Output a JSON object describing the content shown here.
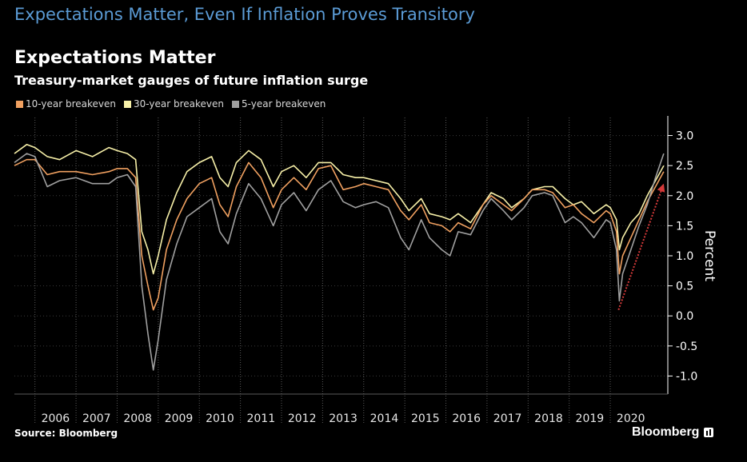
{
  "headline": "Expectations Matter, Even If Inflation Proves Transitory",
  "source": "Source: Bloomberg",
  "brand": "Bloomberg",
  "chart_data": {
    "type": "line",
    "title": "Expectations Matter",
    "subtitle": "Treasury-market gauges of future inflation surge",
    "xlabel": "",
    "ylabel": "Percent",
    "x_ticks": [
      "2006",
      "2007",
      "2008",
      "2009",
      "2010",
      "2011",
      "2012",
      "2013",
      "2014",
      "2015",
      "2016",
      "2017",
      "2018",
      "2019",
      "2020"
    ],
    "x_range": [
      2005.5,
      2021.4
    ],
    "ylim": [
      -1.3,
      3.3
    ],
    "y_ticks": [
      3.0,
      2.5,
      2.0,
      1.5,
      1.0,
      0.5,
      0.0,
      -0.5,
      -1.0
    ],
    "y_tick_labels": [
      "3.0",
      "2.5",
      "2.0",
      "1.5",
      "1.0",
      "0.5",
      "0.0",
      "-0.5",
      "-1.0"
    ],
    "annotation": {
      "type": "arrow",
      "color": "#d63a3a",
      "from": [
        2020.2,
        0.1
      ],
      "to": [
        2021.3,
        2.2
      ]
    },
    "series": [
      {
        "name": "30-year breakeven",
        "color": "#f7f0a8",
        "points": [
          [
            2005.5,
            2.7
          ],
          [
            2005.8,
            2.85
          ],
          [
            2006.0,
            2.8
          ],
          [
            2006.3,
            2.65
          ],
          [
            2006.6,
            2.6
          ],
          [
            2007.0,
            2.75
          ],
          [
            2007.4,
            2.65
          ],
          [
            2007.8,
            2.8
          ],
          [
            2008.0,
            2.75
          ],
          [
            2008.25,
            2.7
          ],
          [
            2008.45,
            2.6
          ],
          [
            2008.6,
            1.4
          ],
          [
            2008.75,
            1.1
          ],
          [
            2008.88,
            0.7
          ],
          [
            2009.0,
            1.0
          ],
          [
            2009.2,
            1.6
          ],
          [
            2009.45,
            2.05
          ],
          [
            2009.7,
            2.4
          ],
          [
            2010.0,
            2.55
          ],
          [
            2010.3,
            2.65
          ],
          [
            2010.5,
            2.3
          ],
          [
            2010.7,
            2.15
          ],
          [
            2010.9,
            2.55
          ],
          [
            2011.2,
            2.75
          ],
          [
            2011.5,
            2.6
          ],
          [
            2011.8,
            2.15
          ],
          [
            2012.0,
            2.4
          ],
          [
            2012.3,
            2.5
          ],
          [
            2012.6,
            2.3
          ],
          [
            2012.9,
            2.55
          ],
          [
            2013.2,
            2.55
          ],
          [
            2013.5,
            2.35
          ],
          [
            2013.8,
            2.3
          ],
          [
            2014.0,
            2.3
          ],
          [
            2014.3,
            2.25
          ],
          [
            2014.6,
            2.2
          ],
          [
            2014.9,
            1.95
          ],
          [
            2015.1,
            1.75
          ],
          [
            2015.4,
            1.95
          ],
          [
            2015.6,
            1.7
          ],
          [
            2015.9,
            1.65
          ],
          [
            2016.1,
            1.6
          ],
          [
            2016.3,
            1.7
          ],
          [
            2016.6,
            1.55
          ],
          [
            2016.9,
            1.85
          ],
          [
            2017.1,
            2.05
          ],
          [
            2017.4,
            1.95
          ],
          [
            2017.6,
            1.8
          ],
          [
            2017.9,
            1.95
          ],
          [
            2018.1,
            2.1
          ],
          [
            2018.4,
            2.15
          ],
          [
            2018.6,
            2.15
          ],
          [
            2018.9,
            1.95
          ],
          [
            2019.1,
            1.85
          ],
          [
            2019.3,
            1.9
          ],
          [
            2019.6,
            1.7
          ],
          [
            2019.9,
            1.85
          ],
          [
            2020.0,
            1.8
          ],
          [
            2020.15,
            1.6
          ],
          [
            2020.22,
            1.1
          ],
          [
            2020.3,
            1.3
          ],
          [
            2020.5,
            1.55
          ],
          [
            2020.7,
            1.7
          ],
          [
            2020.9,
            2.0
          ],
          [
            2021.1,
            2.25
          ],
          [
            2021.3,
            2.5
          ]
        ]
      },
      {
        "name": "10-year breakeven",
        "color": "#f0a060",
        "points": [
          [
            2005.5,
            2.5
          ],
          [
            2005.8,
            2.6
          ],
          [
            2006.0,
            2.6
          ],
          [
            2006.3,
            2.35
          ],
          [
            2006.6,
            2.4
          ],
          [
            2007.0,
            2.4
          ],
          [
            2007.4,
            2.35
          ],
          [
            2007.8,
            2.4
          ],
          [
            2008.0,
            2.45
          ],
          [
            2008.25,
            2.45
          ],
          [
            2008.45,
            2.3
          ],
          [
            2008.6,
            1.0
          ],
          [
            2008.75,
            0.5
          ],
          [
            2008.88,
            0.1
          ],
          [
            2009.0,
            0.3
          ],
          [
            2009.2,
            1.1
          ],
          [
            2009.45,
            1.6
          ],
          [
            2009.7,
            1.95
          ],
          [
            2010.0,
            2.2
          ],
          [
            2010.3,
            2.3
          ],
          [
            2010.5,
            1.85
          ],
          [
            2010.7,
            1.65
          ],
          [
            2010.9,
            2.15
          ],
          [
            2011.2,
            2.55
          ],
          [
            2011.5,
            2.3
          ],
          [
            2011.8,
            1.8
          ],
          [
            2012.0,
            2.1
          ],
          [
            2012.3,
            2.3
          ],
          [
            2012.6,
            2.1
          ],
          [
            2012.9,
            2.45
          ],
          [
            2013.2,
            2.5
          ],
          [
            2013.5,
            2.1
          ],
          [
            2013.8,
            2.15
          ],
          [
            2014.0,
            2.2
          ],
          [
            2014.3,
            2.15
          ],
          [
            2014.6,
            2.1
          ],
          [
            2014.9,
            1.75
          ],
          [
            2015.1,
            1.6
          ],
          [
            2015.4,
            1.85
          ],
          [
            2015.6,
            1.55
          ],
          [
            2015.9,
            1.5
          ],
          [
            2016.1,
            1.4
          ],
          [
            2016.3,
            1.55
          ],
          [
            2016.6,
            1.45
          ],
          [
            2016.9,
            1.85
          ],
          [
            2017.1,
            2.0
          ],
          [
            2017.4,
            1.85
          ],
          [
            2017.6,
            1.75
          ],
          [
            2017.9,
            1.95
          ],
          [
            2018.1,
            2.1
          ],
          [
            2018.4,
            2.1
          ],
          [
            2018.6,
            2.05
          ],
          [
            2018.9,
            1.8
          ],
          [
            2019.1,
            1.85
          ],
          [
            2019.3,
            1.7
          ],
          [
            2019.6,
            1.55
          ],
          [
            2019.9,
            1.75
          ],
          [
            2020.0,
            1.7
          ],
          [
            2020.15,
            1.4
          ],
          [
            2020.22,
            0.7
          ],
          [
            2020.3,
            1.0
          ],
          [
            2020.5,
            1.3
          ],
          [
            2020.7,
            1.6
          ],
          [
            2020.9,
            1.9
          ],
          [
            2021.1,
            2.15
          ],
          [
            2021.3,
            2.4
          ]
        ]
      },
      {
        "name": "5-year breakeven",
        "color": "#a0a0a0",
        "points": [
          [
            2005.5,
            2.55
          ],
          [
            2005.8,
            2.7
          ],
          [
            2006.0,
            2.65
          ],
          [
            2006.3,
            2.15
          ],
          [
            2006.6,
            2.25
          ],
          [
            2007.0,
            2.3
          ],
          [
            2007.4,
            2.2
          ],
          [
            2007.8,
            2.2
          ],
          [
            2008.0,
            2.3
          ],
          [
            2008.25,
            2.35
          ],
          [
            2008.45,
            2.15
          ],
          [
            2008.6,
            0.5
          ],
          [
            2008.75,
            -0.3
          ],
          [
            2008.88,
            -0.9
          ],
          [
            2009.0,
            -0.4
          ],
          [
            2009.2,
            0.6
          ],
          [
            2009.45,
            1.2
          ],
          [
            2009.7,
            1.65
          ],
          [
            2010.0,
            1.8
          ],
          [
            2010.3,
            1.95
          ],
          [
            2010.5,
            1.4
          ],
          [
            2010.7,
            1.2
          ],
          [
            2010.9,
            1.7
          ],
          [
            2011.2,
            2.2
          ],
          [
            2011.5,
            1.95
          ],
          [
            2011.8,
            1.5
          ],
          [
            2012.0,
            1.85
          ],
          [
            2012.3,
            2.05
          ],
          [
            2012.6,
            1.75
          ],
          [
            2012.9,
            2.1
          ],
          [
            2013.2,
            2.25
          ],
          [
            2013.5,
            1.9
          ],
          [
            2013.8,
            1.8
          ],
          [
            2014.0,
            1.85
          ],
          [
            2014.3,
            1.9
          ],
          [
            2014.6,
            1.8
          ],
          [
            2014.9,
            1.3
          ],
          [
            2015.1,
            1.1
          ],
          [
            2015.4,
            1.6
          ],
          [
            2015.6,
            1.3
          ],
          [
            2015.9,
            1.1
          ],
          [
            2016.1,
            1.0
          ],
          [
            2016.3,
            1.4
          ],
          [
            2016.6,
            1.35
          ],
          [
            2016.9,
            1.75
          ],
          [
            2017.1,
            1.95
          ],
          [
            2017.4,
            1.75
          ],
          [
            2017.6,
            1.6
          ],
          [
            2017.9,
            1.8
          ],
          [
            2018.1,
            2.0
          ],
          [
            2018.4,
            2.05
          ],
          [
            2018.6,
            2.0
          ],
          [
            2018.9,
            1.55
          ],
          [
            2019.1,
            1.65
          ],
          [
            2019.3,
            1.55
          ],
          [
            2019.6,
            1.3
          ],
          [
            2019.9,
            1.6
          ],
          [
            2020.0,
            1.55
          ],
          [
            2020.15,
            1.1
          ],
          [
            2020.22,
            0.25
          ],
          [
            2020.3,
            0.7
          ],
          [
            2020.5,
            1.1
          ],
          [
            2020.7,
            1.5
          ],
          [
            2020.9,
            1.85
          ],
          [
            2021.1,
            2.3
          ],
          [
            2021.3,
            2.7
          ]
        ]
      }
    ]
  }
}
